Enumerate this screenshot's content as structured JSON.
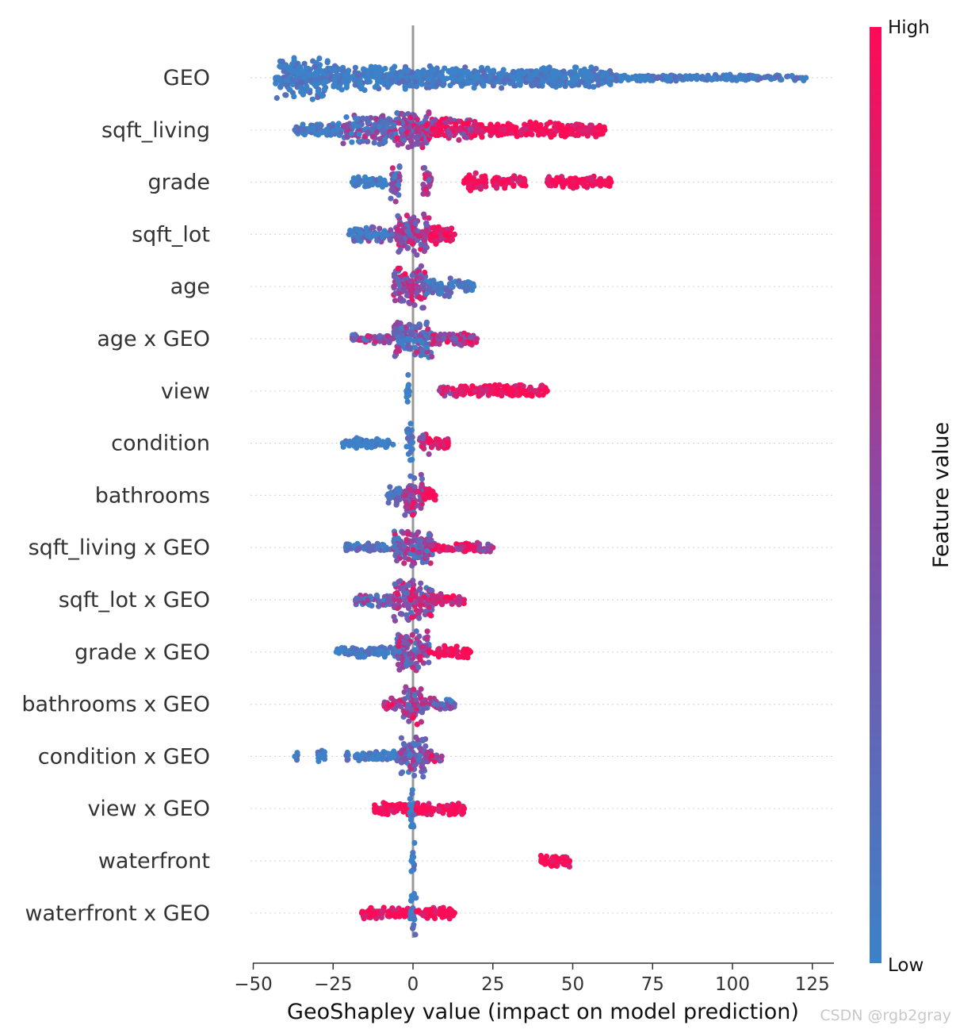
{
  "chart_data": {
    "type": "scatter",
    "subtype": "beeswarm-summary",
    "xlabel": "GeoShapley value (impact on model prediction)",
    "xlim": [
      -50,
      130
    ],
    "xticks": [
      -50,
      -25,
      0,
      25,
      50,
      75,
      100,
      125
    ],
    "xtick_labels": [
      "−50",
      "−25",
      "0",
      "25",
      "50",
      "75",
      "100",
      "125"
    ],
    "colorbar": {
      "label": "Feature value",
      "high": "High",
      "low": "Low",
      "low_color": "#3b82c8",
      "high_color": "#ff0a55"
    },
    "features": [
      {
        "name": "GEO",
        "min": -43,
        "max": 123,
        "segments": [
          {
            "from": -43,
            "to": -26,
            "width": 1.0,
            "color": 0.0
          },
          {
            "from": -26,
            "to": 10,
            "width": 0.6,
            "color": 0.0
          },
          {
            "from": 10,
            "to": 62,
            "width": 0.5,
            "color": 0.0
          },
          {
            "from": 62,
            "to": 123,
            "width": 0.15,
            "color": 0.0
          }
        ]
      },
      {
        "name": "sqft_living",
        "min": -37,
        "max": 60,
        "segments": [
          {
            "from": -37,
            "to": -22,
            "width": 0.3,
            "color": 0.1
          },
          {
            "from": -22,
            "to": -5,
            "width": 0.7,
            "color": 0.3
          },
          {
            "from": -5,
            "to": 5,
            "width": 1.0,
            "color": 0.5
          },
          {
            "from": 5,
            "to": 20,
            "width": 0.6,
            "color": 0.75
          },
          {
            "from": 20,
            "to": 60,
            "width": 0.35,
            "color": 1.0
          }
        ]
      },
      {
        "name": "grade",
        "min": -19,
        "max": 62,
        "segments": [
          {
            "from": -19,
            "to": -8,
            "width": 0.25,
            "color": 0.0
          },
          {
            "from": -7,
            "to": -4,
            "width": 1.0,
            "color": 0.35
          },
          {
            "from": 3,
            "to": 6,
            "width": 0.8,
            "color": 0.6
          },
          {
            "from": 16,
            "to": 23,
            "width": 0.45,
            "color": 1.0
          },
          {
            "from": 25,
            "to": 36,
            "width": 0.3,
            "color": 1.0
          },
          {
            "from": 42,
            "to": 62,
            "width": 0.3,
            "color": 1.0
          }
        ]
      },
      {
        "name": "sqft_lot",
        "min": -20,
        "max": 13,
        "segments": [
          {
            "from": -20,
            "to": -15,
            "width": 0.4,
            "color": 0.1
          },
          {
            "from": -15,
            "to": -5,
            "width": 0.35,
            "color": 0.2
          },
          {
            "from": -5,
            "to": 5,
            "width": 1.0,
            "color": 0.5
          },
          {
            "from": 5,
            "to": 13,
            "width": 0.45,
            "color": 0.9
          }
        ]
      },
      {
        "name": "age",
        "min": -6,
        "max": 19,
        "segments": [
          {
            "from": -6,
            "to": 4,
            "width": 1.0,
            "color": 0.6
          },
          {
            "from": 4,
            "to": 12,
            "width": 0.5,
            "color": 0.1
          },
          {
            "from": 12,
            "to": 19,
            "width": 0.3,
            "color": 0.0
          }
        ]
      },
      {
        "name": "age x GEO",
        "min": -19,
        "max": 20,
        "segments": [
          {
            "from": -19,
            "to": -6,
            "width": 0.25,
            "color": 0.4
          },
          {
            "from": -6,
            "to": 6,
            "width": 1.0,
            "color": 0.35
          },
          {
            "from": 6,
            "to": 20,
            "width": 0.3,
            "color": 0.7
          }
        ]
      },
      {
        "name": "view",
        "min": -2,
        "max": 42,
        "segments": [
          {
            "from": -2,
            "to": -1,
            "width": 1.0,
            "color": 0.0
          },
          {
            "from": 8,
            "to": 13,
            "width": 0.25,
            "color": 0.7
          },
          {
            "from": 13,
            "to": 42,
            "width": 0.3,
            "color": 1.0
          }
        ]
      },
      {
        "name": "condition",
        "min": -22,
        "max": 11,
        "segments": [
          {
            "from": -22,
            "to": -6,
            "width": 0.25,
            "color": 0.0
          },
          {
            "from": -2,
            "to": 0,
            "width": 1.0,
            "color": 0.1
          },
          {
            "from": 2,
            "to": 5,
            "width": 0.6,
            "color": 0.7
          },
          {
            "from": 5,
            "to": 11,
            "width": 0.3,
            "color": 1.0
          }
        ]
      },
      {
        "name": "bathrooms",
        "min": -8,
        "max": 7,
        "segments": [
          {
            "from": -8,
            "to": -3,
            "width": 0.5,
            "color": 0.1
          },
          {
            "from": -3,
            "to": 3,
            "width": 1.0,
            "color": 0.55
          },
          {
            "from": 3,
            "to": 7,
            "width": 0.4,
            "color": 1.0
          }
        ]
      },
      {
        "name": "sqft_living x GEO",
        "min": -21,
        "max": 25,
        "segments": [
          {
            "from": -21,
            "to": -6,
            "width": 0.2,
            "color": 0.1
          },
          {
            "from": -6,
            "to": 6,
            "width": 1.0,
            "color": 0.45
          },
          {
            "from": 6,
            "to": 25,
            "width": 0.25,
            "color": 0.75
          }
        ]
      },
      {
        "name": "sqft_lot x GEO",
        "min": -18,
        "max": 16,
        "segments": [
          {
            "from": -18,
            "to": -6,
            "width": 0.3,
            "color": 0.25
          },
          {
            "from": -6,
            "to": 6,
            "width": 1.0,
            "color": 0.55
          },
          {
            "from": 6,
            "to": 16,
            "width": 0.3,
            "color": 0.85
          }
        ]
      },
      {
        "name": "grade x GEO",
        "min": -24,
        "max": 18,
        "segments": [
          {
            "from": -24,
            "to": -5,
            "width": 0.25,
            "color": 0.0
          },
          {
            "from": -5,
            "to": 5,
            "width": 1.0,
            "color": 0.45
          },
          {
            "from": 5,
            "to": 18,
            "width": 0.3,
            "color": 1.0
          }
        ]
      },
      {
        "name": "bathrooms x GEO",
        "min": -9,
        "max": 13,
        "segments": [
          {
            "from": -9,
            "to": -3,
            "width": 0.3,
            "color": 0.7
          },
          {
            "from": -3,
            "to": 3,
            "width": 1.0,
            "color": 0.55
          },
          {
            "from": 3,
            "to": 13,
            "width": 0.3,
            "color": 0.3
          }
        ]
      },
      {
        "name": "condition x GEO",
        "min": -37,
        "max": 9,
        "segments": [
          {
            "from": -37,
            "to": -36,
            "width": 0.3,
            "color": 0.0
          },
          {
            "from": -30,
            "to": -27,
            "width": 0.3,
            "color": 0.0
          },
          {
            "from": -21,
            "to": -20,
            "width": 0.3,
            "color": 0.0
          },
          {
            "from": -18,
            "to": -4,
            "width": 0.25,
            "color": 0.05
          },
          {
            "from": -4,
            "to": 4,
            "width": 1.0,
            "color": 0.35
          },
          {
            "from": 4,
            "to": 9,
            "width": 0.3,
            "color": 0.6
          }
        ]
      },
      {
        "name": "view x GEO",
        "min": -12,
        "max": 16,
        "segments": [
          {
            "from": -12,
            "to": -1,
            "width": 0.3,
            "color": 1.0
          },
          {
            "from": -1,
            "to": 1,
            "width": 1.0,
            "color": 0.0
          },
          {
            "from": 1,
            "to": 16,
            "width": 0.3,
            "color": 1.0
          }
        ]
      },
      {
        "name": "waterfront",
        "min": -0.5,
        "max": 49,
        "segments": [
          {
            "from": -0.5,
            "to": 0.5,
            "width": 1.0,
            "color": 0.0
          },
          {
            "from": 40,
            "to": 49,
            "width": 0.3,
            "color": 1.0
          }
        ]
      },
      {
        "name": "waterfront x GEO",
        "min": -16,
        "max": 13,
        "segments": [
          {
            "from": -16,
            "to": -1,
            "width": 0.3,
            "color": 1.0
          },
          {
            "from": -1,
            "to": 1,
            "width": 1.0,
            "color": 0.0
          },
          {
            "from": 1,
            "to": 13,
            "width": 0.3,
            "color": 1.0
          }
        ]
      }
    ]
  },
  "watermark": "CSDN @rgb2gray"
}
